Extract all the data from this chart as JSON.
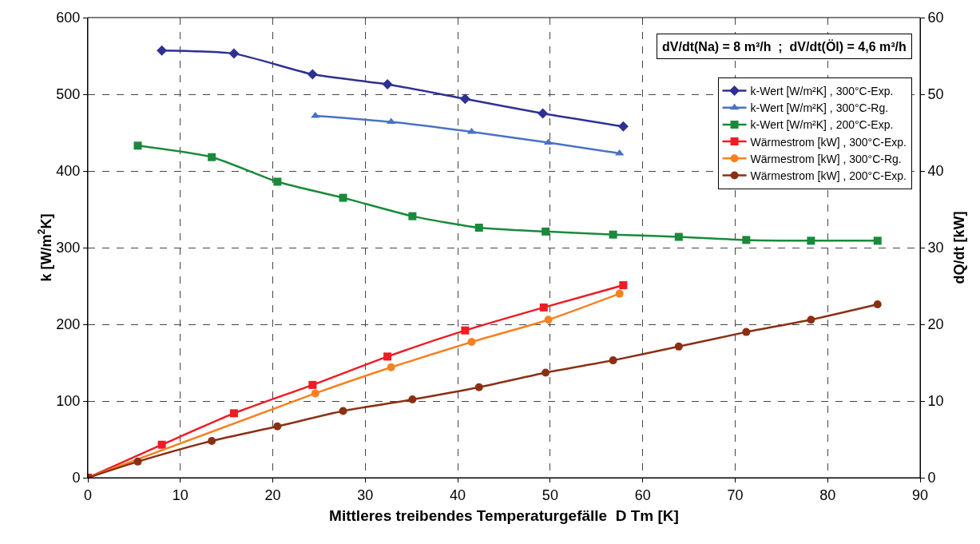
{
  "chart_data": {
    "type": "line",
    "xlabel": "Mittleres treibendes Temperaturgefälle  D Tm [K]",
    "ylabel": "k [W/m$^{2}$K]",
    "y2label": "dQ/dt [kW]",
    "annotations": [
      "dV/dt(Na) = 8 m³/h  ;  dV/dt(Öl) = 4,6 m³/h"
    ],
    "xlim": [
      0,
      90
    ],
    "xticks": [
      0,
      10,
      20,
      30,
      40,
      50,
      60,
      70,
      80,
      90
    ],
    "ylim": [
      0,
      600
    ],
    "yticks": [
      0,
      100,
      200,
      300,
      400,
      500,
      600
    ],
    "y2lim": [
      0,
      60
    ],
    "y2ticks": [
      0,
      10,
      20,
      30,
      40,
      50,
      60
    ],
    "grid": true,
    "legend": "top right",
    "line_style": "solid",
    "series": [
      {
        "name": "k-Wert [W/m²K] , 300°C-Exp.",
        "color": "#2e3192",
        "marker": "diamond",
        "x": [
          8.0,
          15.8,
          24.3,
          32.4,
          40.8,
          49.2,
          57.9
        ],
        "values": [
          557,
          553,
          526,
          513,
          494,
          475,
          458
        ]
      },
      {
        "name": "k-Wert [W/m²K] , 300°C-Rg.",
        "color": "#4a72c4",
        "marker": "triangle",
        "x": [
          24.6,
          32.8,
          41.5,
          49.8,
          57.5
        ],
        "values": [
          472,
          464,
          451,
          437,
          423
        ]
      },
      {
        "name": "k-Wert [W/m²K] , 200°C-Exp.",
        "color": "#1a8a3a",
        "marker": "square",
        "x": [
          5.4,
          13.4,
          20.5,
          27.6,
          35.1,
          42.3,
          49.5,
          56.8,
          63.9,
          71.2,
          78.2,
          85.4
        ],
        "values": [
          433,
          418,
          386,
          365,
          341,
          326,
          321,
          317,
          314,
          310,
          309,
          309
        ]
      },
      {
        "name": "Wärmestrom [kW] , 300°C-Exp.",
        "color": "#ee1c25",
        "marker": "square",
        "axis": "y2",
        "x": [
          0,
          8.0,
          15.8,
          24.3,
          32.4,
          40.8,
          49.3,
          57.9
        ],
        "values": [
          0,
          4.3,
          8.4,
          12.1,
          15.8,
          19.2,
          22.2,
          25.1
        ]
      },
      {
        "name": "Wärmestrom [kW] , 300°C-Rg.",
        "color": "#f7801f",
        "marker": "circle",
        "axis": "y2",
        "x": [
          0,
          24.6,
          32.8,
          41.5,
          49.8,
          57.5
        ],
        "values": [
          0,
          11.0,
          14.4,
          17.7,
          20.6,
          24.0
        ]
      },
      {
        "name": "Wärmestrom [kW] , 200°C-Exp.",
        "color": "#8b2f14",
        "marker": "circle",
        "axis": "y2",
        "x": [
          0,
          5.4,
          13.4,
          20.5,
          27.6,
          35.1,
          42.3,
          49.5,
          56.8,
          63.9,
          71.2,
          78.2,
          85.4
        ],
        "values": [
          0,
          2.1,
          4.8,
          6.7,
          8.7,
          10.2,
          11.8,
          13.7,
          15.3,
          17.1,
          19.0,
          20.6,
          22.6
        ]
      }
    ]
  }
}
